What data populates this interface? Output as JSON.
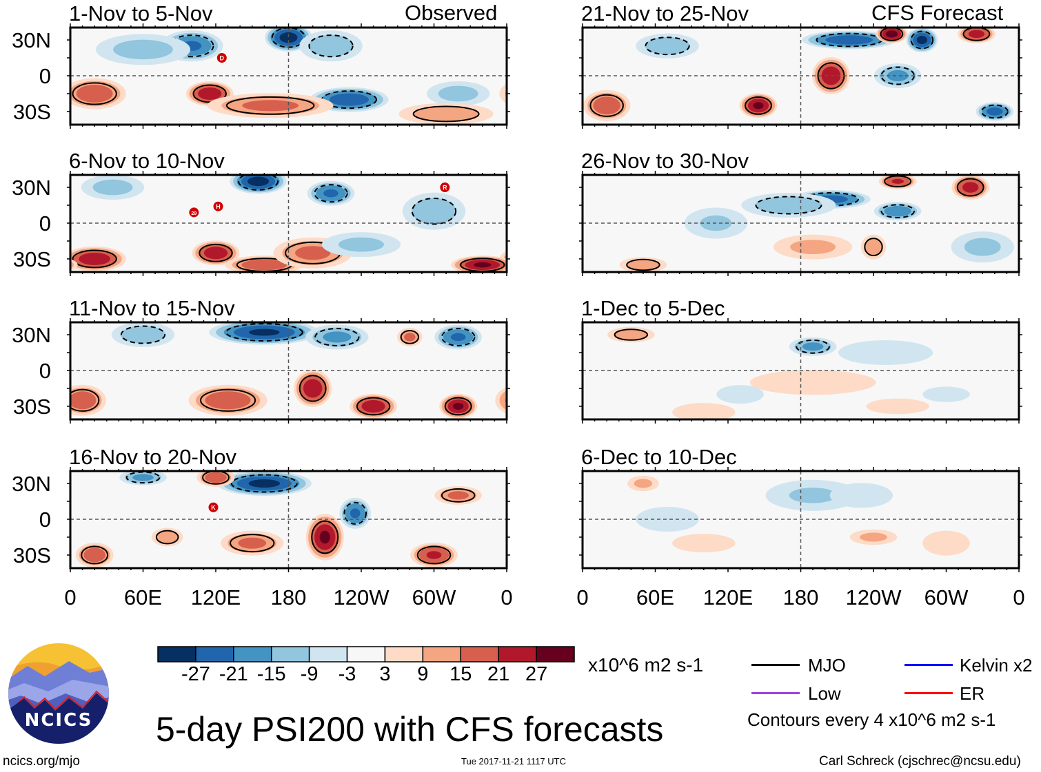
{
  "header": {
    "left_label": "Observed",
    "right_label": "CFS Forecast"
  },
  "axes": {
    "lat_labels": [
      "30N",
      "0",
      "30S"
    ],
    "lat_values": [
      30,
      0,
      -30
    ],
    "lon_labels": [
      "0",
      "60E",
      "120E",
      "180",
      "120W",
      "60W",
      "0"
    ],
    "lon_values": [
      0,
      60,
      120,
      180,
      240,
      300,
      360
    ],
    "lat_range": [
      40.4,
      -41
    ]
  },
  "panels": [
    {
      "title": "1-Nov to 5-Nov",
      "type": "observed",
      "anomalies": [
        [
          100,
          25,
          -20,
          20,
          10
        ],
        [
          180,
          32,
          -28,
          15,
          9
        ],
        [
          230,
          -20,
          -24,
          25,
          8
        ],
        [
          20,
          -15,
          18,
          20,
          10
        ],
        [
          115,
          -15,
          24,
          15,
          8
        ],
        [
          165,
          -25,
          15,
          40,
          8
        ],
        [
          215,
          25,
          -12,
          20,
          10
        ],
        [
          320,
          -15,
          -10,
          20,
          8
        ],
        [
          60,
          22,
          -10,
          30,
          10
        ],
        [
          310,
          -32,
          12,
          30,
          7
        ]
      ],
      "markers": [
        {
          "label": "D",
          "lon": 125,
          "lat": 15
        }
      ]
    },
    {
      "title": "6-Nov to 10-Nov",
      "type": "observed",
      "anomalies": [
        [
          155,
          35,
          -28,
          18,
          8
        ],
        [
          215,
          25,
          -20,
          15,
          8
        ],
        [
          20,
          -30,
          24,
          20,
          8
        ],
        [
          120,
          -25,
          24,
          15,
          8
        ],
        [
          160,
          -35,
          18,
          25,
          6
        ],
        [
          200,
          -25,
          15,
          25,
          10
        ],
        [
          340,
          -35,
          26,
          20,
          6
        ],
        [
          240,
          -18,
          -9,
          25,
          8
        ],
        [
          300,
          10,
          -12,
          20,
          12
        ],
        [
          35,
          30,
          -10,
          20,
          8
        ]
      ],
      "markers": [
        {
          "label": "29",
          "lon": 102,
          "lat": 9
        },
        {
          "label": "H",
          "lon": 122,
          "lat": 14
        },
        {
          "label": "R",
          "lon": 309,
          "lat": 30
        }
      ]
    },
    {
      "title": "11-Nov to 15-Nov",
      "type": "observed",
      "anomalies": [
        [
          160,
          32,
          -26,
          35,
          8
        ],
        [
          280,
          28,
          15,
          8,
          6
        ],
        [
          220,
          28,
          -15,
          20,
          8
        ],
        [
          320,
          28,
          -20,
          15,
          8
        ],
        [
          200,
          -15,
          24,
          12,
          12
        ],
        [
          250,
          -30,
          24,
          15,
          8
        ],
        [
          320,
          -30,
          26,
          12,
          8
        ],
        [
          130,
          -25,
          18,
          25,
          10
        ],
        [
          10,
          -25,
          18,
          15,
          10
        ],
        [
          60,
          30,
          -12,
          20,
          8
        ]
      ],
      "markers": []
    },
    {
      "title": "16-Nov to 20-Nov",
      "type": "observed",
      "anomalies": [
        [
          160,
          30,
          -27,
          30,
          8
        ],
        [
          120,
          35,
          18,
          12,
          6
        ],
        [
          210,
          -15,
          26,
          12,
          15
        ],
        [
          235,
          5,
          -20,
          10,
          10
        ],
        [
          60,
          35,
          -15,
          15,
          5
        ],
        [
          320,
          20,
          15,
          15,
          6
        ],
        [
          150,
          -20,
          15,
          20,
          8
        ],
        [
          20,
          -30,
          18,
          12,
          8
        ],
        [
          300,
          -30,
          20,
          15,
          8
        ],
        [
          80,
          -15,
          12,
          10,
          6
        ]
      ],
      "markers": [
        {
          "label": "K",
          "lon": 118,
          "lat": 10
        }
      ]
    },
    {
      "title": "21-Nov to 25-Nov",
      "type": "forecast",
      "anomalies": [
        [
          220,
          30,
          -24,
          30,
          6
        ],
        [
          255,
          35,
          28,
          10,
          6
        ],
        [
          280,
          30,
          -27,
          10,
          8
        ],
        [
          325,
          35,
          22,
          12,
          6
        ],
        [
          205,
          0,
          24,
          12,
          12
        ],
        [
          145,
          -25,
          26,
          12,
          8
        ],
        [
          260,
          0,
          -15,
          15,
          8
        ],
        [
          20,
          -25,
          18,
          15,
          10
        ],
        [
          340,
          -30,
          -22,
          12,
          6
        ],
        [
          70,
          25,
          -12,
          20,
          8
        ]
      ],
      "markers": []
    },
    {
      "title": "26-Nov to 30-Nov",
      "type": "forecast",
      "anomalies": [
        [
          205,
          20,
          -22,
          25,
          6
        ],
        [
          260,
          35,
          20,
          12,
          5
        ],
        [
          320,
          30,
          22,
          12,
          8
        ],
        [
          260,
          10,
          -18,
          15,
          6
        ],
        [
          170,
          15,
          -12,
          30,
          8
        ],
        [
          240,
          -20,
          12,
          8,
          8
        ],
        [
          50,
          -35,
          12,
          15,
          5
        ],
        [
          110,
          0,
          -8,
          20,
          10
        ],
        [
          330,
          -20,
          -9,
          20,
          10
        ],
        [
          190,
          -20,
          9,
          25,
          8
        ]
      ],
      "markers": []
    },
    {
      "title": "1-Dec to 5-Dec",
      "type": "forecast",
      "anomalies": [
        [
          190,
          20,
          -15,
          15,
          6
        ],
        [
          40,
          30,
          12,
          15,
          5
        ],
        [
          190,
          -10,
          6,
          40,
          8
        ],
        [
          250,
          15,
          -6,
          30,
          8
        ],
        [
          100,
          -35,
          6,
          20,
          6
        ],
        [
          300,
          -20,
          -6,
          15,
          5
        ],
        [
          130,
          -20,
          -6,
          15,
          6
        ],
        [
          260,
          -30,
          6,
          20,
          5
        ]
      ],
      "markers": []
    },
    {
      "title": "6-Dec to 10-Dec",
      "type": "forecast",
      "anomalies": [
        [
          190,
          20,
          -8,
          30,
          10
        ],
        [
          240,
          -15,
          9,
          15,
          5
        ],
        [
          70,
          0,
          -4,
          20,
          8
        ],
        [
          300,
          -20,
          6,
          15,
          8
        ],
        [
          100,
          -20,
          6,
          20,
          6
        ],
        [
          50,
          30,
          9,
          10,
          5
        ],
        [
          230,
          20,
          -6,
          20,
          8
        ]
      ],
      "markers": []
    }
  ],
  "colorbar": {
    "ticks": [
      "-27",
      "-21",
      "-15",
      "-9",
      "-3",
      "3",
      "9",
      "15",
      "21",
      "27"
    ],
    "levels": [
      -27,
      -21,
      -15,
      -9,
      -3,
      3,
      9,
      15,
      21,
      27
    ],
    "colors": [
      "#053061",
      "#2166ac",
      "#4393c3",
      "#92c5de",
      "#d1e5f0",
      "#f7f7f7",
      "#fddbc7",
      "#f4a582",
      "#d6604d",
      "#b2182b",
      "#67001f"
    ],
    "units": "x10^6 m2 s-1"
  },
  "legend": {
    "items": [
      {
        "label": "MJO",
        "color": "#000000"
      },
      {
        "label": "Kelvin x2",
        "color": "#0000ff"
      },
      {
        "label": "Low",
        "color": "#a040e0"
      },
      {
        "label": "ER",
        "color": "#ff0000"
      }
    ],
    "contour_note": "Contours every 4 x10^6 m2 s-1"
  },
  "title": "5-day PSI200 with CFS forecasts",
  "logo_text": "NCICS",
  "footer": {
    "url": "ncics.org/mjo",
    "timestamp": "Tue 2017-11-21 1117 UTC",
    "author": "Carl Schreck (cjschrec@ncsu.edu)"
  }
}
